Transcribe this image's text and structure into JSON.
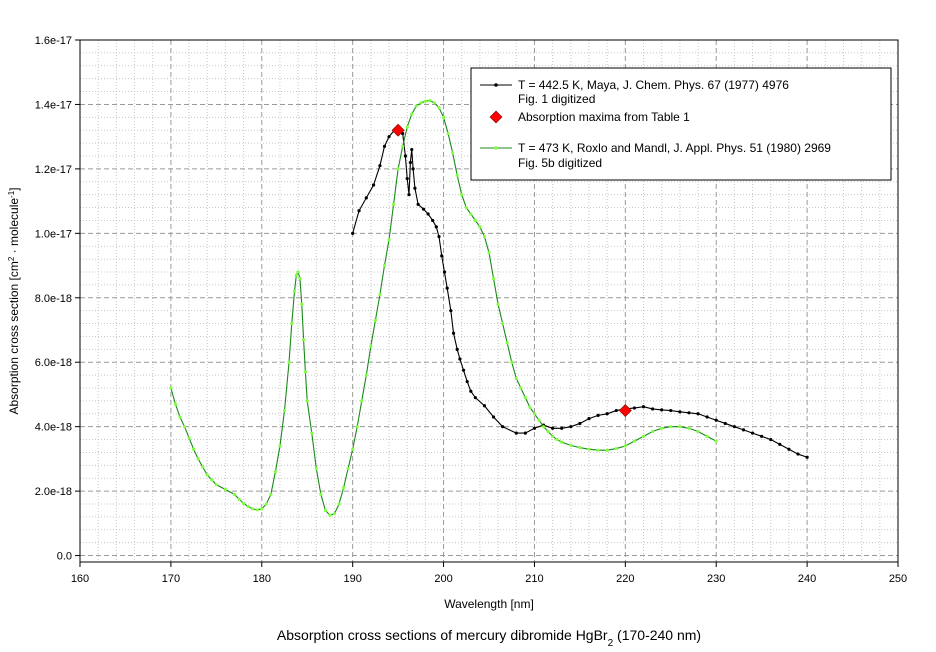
{
  "chart_data": {
    "type": "line",
    "title": "Absorption cross sections of mercury dibromide HgBr",
    "title_sub": "2",
    "title_tail": " (170-240 nm)",
    "xlabel": "Wavelength [nm]",
    "ylabel_parts": [
      "Absorption cross section [cm",
      "2",
      " · molecule",
      "-1",
      "]"
    ],
    "xlim": [
      160,
      250
    ],
    "ylim": [
      -2e-19,
      1.6e-17
    ],
    "xticks": [
      160,
      170,
      180,
      190,
      200,
      210,
      220,
      230,
      240,
      250
    ],
    "xtick_labels": [
      "160",
      "170",
      "180",
      "190",
      "200",
      "210",
      "220",
      "230",
      "240",
      "250"
    ],
    "yticks": [
      0,
      2e-18,
      4e-18,
      6e-18,
      8e-18,
      1e-17,
      1.2e-17,
      1.4e-17,
      1.6e-17
    ],
    "ytick_labels": [
      "0.0",
      "2.0e-18",
      "4.0e-18",
      "6.0e-18",
      "8.0e-18",
      "1.0e-17",
      "1.2e-17",
      "1.4e-17",
      "1.6e-17"
    ],
    "grid": true,
    "legend_position": "top-right",
    "series": [
      {
        "name_lines": [
          "T = 442.5 K, Maya, J. Chem. Phys. 67 (1977) 4976",
          "Fig. 1 digitized"
        ],
        "color": "#000000",
        "marker": "dot",
        "points": [
          [
            190,
            1e-17
          ],
          [
            190.7,
            1.07e-17
          ],
          [
            191.5,
            1.11e-17
          ],
          [
            192.3,
            1.15e-17
          ],
          [
            193,
            1.21e-17
          ],
          [
            193.5,
            1.27e-17
          ],
          [
            194,
            1.3e-17
          ],
          [
            194.6,
            1.32e-17
          ],
          [
            195.1,
            1.33e-17
          ],
          [
            195.5,
            1.31e-17
          ],
          [
            195.8,
            1.24e-17
          ],
          [
            196,
            1.17e-17
          ],
          [
            196.2,
            1.12e-17
          ],
          [
            196.35,
            1.22e-17
          ],
          [
            196.5,
            1.26e-17
          ],
          [
            196.65,
            1.2e-17
          ],
          [
            196.85,
            1.14e-17
          ],
          [
            197.2,
            1.09e-17
          ],
          [
            197.8,
            1.075e-17
          ],
          [
            198.3,
            1.06e-17
          ],
          [
            198.8,
            1.04e-17
          ],
          [
            199.2,
            1.02e-17
          ],
          [
            199.5,
            9.9e-18
          ],
          [
            199.8,
            9.3e-18
          ],
          [
            200.1,
            8.8e-18
          ],
          [
            200.4,
            8.3e-18
          ],
          [
            200.8,
            7.6e-18
          ],
          [
            201.1,
            6.9e-18
          ],
          [
            201.5,
            6.4e-18
          ],
          [
            201.8,
            6.1e-18
          ],
          [
            202.2,
            5.75e-18
          ],
          [
            202.6,
            5.4e-18
          ],
          [
            203,
            5.1e-18
          ],
          [
            203.5,
            4.9e-18
          ],
          [
            204.5,
            4.65e-18
          ],
          [
            205.5,
            4.3e-18
          ],
          [
            206.5,
            4e-18
          ],
          [
            208,
            3.8e-18
          ],
          [
            209,
            3.8e-18
          ],
          [
            210,
            3.95e-18
          ],
          [
            211,
            4.05e-18
          ],
          [
            212,
            3.95e-18
          ],
          [
            213,
            3.95e-18
          ],
          [
            214,
            4e-18
          ],
          [
            215,
            4.1e-18
          ],
          [
            216,
            4.25e-18
          ],
          [
            217,
            4.35e-18
          ],
          [
            218,
            4.4e-18
          ],
          [
            219,
            4.5e-18
          ],
          [
            220,
            4.55e-18
          ],
          [
            221,
            4.58e-18
          ],
          [
            222,
            4.62e-18
          ],
          [
            223,
            4.55e-18
          ],
          [
            224,
            4.52e-18
          ],
          [
            225,
            4.5e-18
          ],
          [
            226,
            4.46e-18
          ],
          [
            227,
            4.43e-18
          ],
          [
            228,
            4.4e-18
          ],
          [
            229,
            4.3e-18
          ],
          [
            230,
            4.2e-18
          ],
          [
            231,
            4.1e-18
          ],
          [
            232,
            4e-18
          ],
          [
            233,
            3.9e-18
          ],
          [
            234,
            3.8e-18
          ],
          [
            235,
            3.7e-18
          ],
          [
            236,
            3.6e-18
          ],
          [
            237,
            3.45e-18
          ],
          [
            238,
            3.3e-18
          ],
          [
            239,
            3.15e-18
          ],
          [
            240,
            3.05e-18
          ]
        ]
      },
      {
        "name_lines": [
          "Absorption maxima from Table 1"
        ],
        "color": "#ff0000",
        "marker": "diamond",
        "points": [
          [
            195,
            1.32e-17
          ],
          [
            220,
            4.5e-18
          ]
        ]
      },
      {
        "name_lines": [
          "T = 473 K, Roxlo and Mandl, J. Appl. Phys. 51 (1980)  2969",
          "Fig. 5b digitized"
        ],
        "color": "#00aa00",
        "line_color": "#1a8a1a",
        "marker_color": "#7dff3c",
        "marker": "dot",
        "points": [
          [
            170,
            5.2e-18
          ],
          [
            170.5,
            4.7e-18
          ],
          [
            171,
            4.3e-18
          ],
          [
            171.5,
            4e-18
          ],
          [
            172,
            3.65e-18
          ],
          [
            172.5,
            3.3e-18
          ],
          [
            173,
            3e-18
          ],
          [
            173.5,
            2.75e-18
          ],
          [
            174,
            2.5e-18
          ],
          [
            174.5,
            2.35e-18
          ],
          [
            175,
            2.2e-18
          ],
          [
            176,
            2.05e-18
          ],
          [
            177,
            1.9e-18
          ],
          [
            177.5,
            1.75e-18
          ],
          [
            178,
            1.62e-18
          ],
          [
            178.5,
            1.52e-18
          ],
          [
            179,
            1.45e-18
          ],
          [
            179.5,
            1.42e-18
          ],
          [
            180,
            1.45e-18
          ],
          [
            180.5,
            1.6e-18
          ],
          [
            181,
            1.9e-18
          ],
          [
            181.5,
            2.6e-18
          ],
          [
            182,
            3.4e-18
          ],
          [
            182.5,
            4.5e-18
          ],
          [
            183,
            6e-18
          ],
          [
            183.3,
            7.2e-18
          ],
          [
            183.6,
            8.2e-18
          ],
          [
            183.8,
            8.7e-18
          ],
          [
            184,
            8.8e-18
          ],
          [
            184.2,
            8.6e-18
          ],
          [
            184.4,
            7.8e-18
          ],
          [
            184.6,
            6.7e-18
          ],
          [
            184.8,
            5.7e-18
          ],
          [
            185,
            4.8e-18
          ],
          [
            185.5,
            3.8e-18
          ],
          [
            186,
            2.7e-18
          ],
          [
            186.5,
            1.9e-18
          ],
          [
            187,
            1.4e-18
          ],
          [
            187.5,
            1.25e-18
          ],
          [
            188,
            1.3e-18
          ],
          [
            188.5,
            1.6e-18
          ],
          [
            189,
            2.1e-18
          ],
          [
            189.5,
            2.7e-18
          ],
          [
            190,
            3.3e-18
          ],
          [
            190.5,
            4e-18
          ],
          [
            191,
            4.8e-18
          ],
          [
            191.5,
            5.6e-18
          ],
          [
            192,
            6.5e-18
          ],
          [
            192.5,
            7.3e-18
          ],
          [
            193,
            8.1e-18
          ],
          [
            193.5,
            9e-18
          ],
          [
            194,
            9.8e-18
          ],
          [
            194.5,
            1.09e-17
          ],
          [
            195,
            1.2e-17
          ],
          [
            195.5,
            1.27e-17
          ],
          [
            196,
            1.33e-17
          ],
          [
            196.5,
            1.37e-17
          ],
          [
            197,
            1.395e-17
          ],
          [
            197.5,
            1.405e-17
          ],
          [
            198,
            1.41e-17
          ],
          [
            198.5,
            1.412e-17
          ],
          [
            199,
            1.405e-17
          ],
          [
            199.5,
            1.39e-17
          ],
          [
            200,
            1.36e-17
          ],
          [
            200.5,
            1.31e-17
          ],
          [
            201,
            1.25e-17
          ],
          [
            201.5,
            1.18e-17
          ],
          [
            202,
            1.12e-17
          ],
          [
            202.5,
            1.08e-17
          ],
          [
            203,
            1.06e-17
          ],
          [
            203.5,
            1.04e-17
          ],
          [
            204,
            1.02e-17
          ],
          [
            204.5,
            9.9e-18
          ],
          [
            205,
            9.4e-18
          ],
          [
            205.5,
            8.6e-18
          ],
          [
            206,
            7.8e-18
          ],
          [
            206.5,
            7.2e-18
          ],
          [
            207,
            6.6e-18
          ],
          [
            207.5,
            6e-18
          ],
          [
            208,
            5.5e-18
          ],
          [
            208.5,
            5.2e-18
          ],
          [
            209,
            4.9e-18
          ],
          [
            209.5,
            4.6e-18
          ],
          [
            210,
            4.4e-18
          ],
          [
            210.5,
            4.2e-18
          ],
          [
            211,
            4e-18
          ],
          [
            211.5,
            3.85e-18
          ],
          [
            212,
            3.7e-18
          ],
          [
            212.5,
            3.6e-18
          ],
          [
            213,
            3.52e-18
          ],
          [
            214,
            3.42e-18
          ],
          [
            215,
            3.35e-18
          ],
          [
            216,
            3.3e-18
          ],
          [
            217,
            3.27e-18
          ],
          [
            218,
            3.27e-18
          ],
          [
            219,
            3.32e-18
          ],
          [
            220,
            3.4e-18
          ],
          [
            221,
            3.55e-18
          ],
          [
            222,
            3.7e-18
          ],
          [
            223,
            3.85e-18
          ],
          [
            224,
            3.95e-18
          ],
          [
            225,
            4e-18
          ],
          [
            226,
            4e-18
          ],
          [
            227,
            3.95e-18
          ],
          [
            228,
            3.85e-18
          ],
          [
            229,
            3.7e-18
          ],
          [
            230,
            3.55e-18
          ]
        ]
      }
    ]
  }
}
